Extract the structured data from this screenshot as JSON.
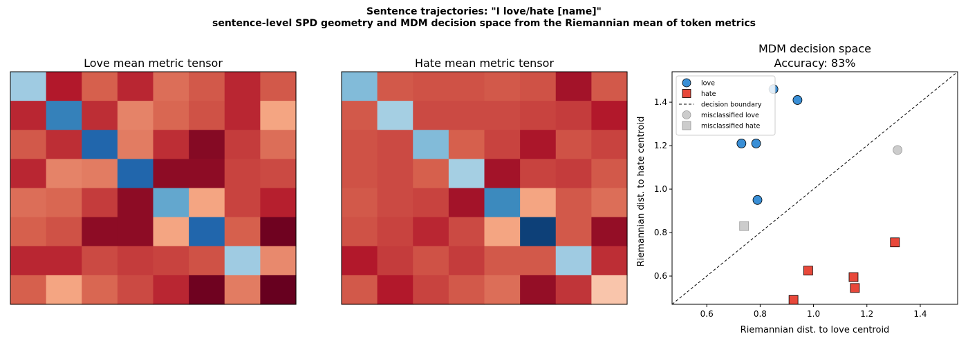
{
  "suptitle": {
    "line1": "Sentence trajectories: \"I love/hate [name]\"",
    "line2": "sentence-level SPD geometry and MDM decision space from the Riemannian mean of token metrics"
  },
  "colors": {
    "love_marker": "#3a8fd6",
    "hate_marker": "#e8483a",
    "misclassified": "#cccccc",
    "colormap": "RdBu"
  },
  "chart_data": [
    {
      "type": "heatmap",
      "title": "Love mean metric tensor",
      "colormap": "RdBu",
      "vmin": 0,
      "vmax": 1,
      "values": [
        [
          0.68,
          0.1,
          0.2,
          0.12,
          0.22,
          0.19,
          0.12,
          0.19
        ],
        [
          0.12,
          0.84,
          0.13,
          0.25,
          0.21,
          0.18,
          0.12,
          0.3
        ],
        [
          0.19,
          0.13,
          0.9,
          0.24,
          0.13,
          0.04,
          0.15,
          0.22
        ],
        [
          0.12,
          0.25,
          0.24,
          0.9,
          0.05,
          0.05,
          0.16,
          0.17
        ],
        [
          0.22,
          0.21,
          0.15,
          0.05,
          0.76,
          0.3,
          0.16,
          0.11
        ],
        [
          0.2,
          0.18,
          0.05,
          0.05,
          0.3,
          0.9,
          0.2,
          0.01
        ],
        [
          0.12,
          0.12,
          0.17,
          0.15,
          0.16,
          0.18,
          0.68,
          0.26
        ],
        [
          0.2,
          0.3,
          0.21,
          0.17,
          0.12,
          0.01,
          0.24,
          0.0
        ]
      ]
    },
    {
      "type": "heatmap",
      "title": "Hate mean metric tensor",
      "colormap": "RdBu",
      "vmin": 0,
      "vmax": 1,
      "values": [
        [
          0.72,
          0.19,
          0.18,
          0.18,
          0.19,
          0.18,
          0.08,
          0.19
        ],
        [
          0.19,
          0.67,
          0.17,
          0.17,
          0.17,
          0.16,
          0.15,
          0.1
        ],
        [
          0.18,
          0.17,
          0.72,
          0.2,
          0.16,
          0.09,
          0.18,
          0.16
        ],
        [
          0.18,
          0.17,
          0.2,
          0.67,
          0.08,
          0.16,
          0.15,
          0.19
        ],
        [
          0.19,
          0.17,
          0.16,
          0.08,
          0.82,
          0.3,
          0.19,
          0.22
        ],
        [
          0.18,
          0.16,
          0.12,
          0.17,
          0.3,
          0.97,
          0.19,
          0.06
        ],
        [
          0.1,
          0.15,
          0.18,
          0.15,
          0.19,
          0.19,
          0.68,
          0.13
        ],
        [
          0.19,
          0.1,
          0.16,
          0.19,
          0.22,
          0.06,
          0.14,
          0.36
        ]
      ]
    },
    {
      "type": "scatter",
      "title": "MDM decision space",
      "subtitle": "Accuracy: 83%",
      "xlabel": "Riemannian dist. to love centroid",
      "ylabel": "Riemannian dist. to hate centroid",
      "xlim": [
        0.47,
        1.54
      ],
      "ylim": [
        0.47,
        1.54
      ],
      "xticks": [
        "0.6",
        "0.8",
        "1.0",
        "1.2",
        "1.4"
      ],
      "yticks": [
        "0.6",
        "0.8",
        "1.0",
        "1.2",
        "1.4"
      ],
      "legend_position": "top-left",
      "series": [
        {
          "name": "love",
          "marker": "circle",
          "color": "#3a8fd6",
          "points": [
            [
              0.85,
              1.46
            ],
            [
              0.94,
              1.41
            ],
            [
              0.73,
              1.21
            ],
            [
              0.785,
              1.21
            ],
            [
              0.79,
              0.95
            ]
          ]
        },
        {
          "name": "hate",
          "marker": "square",
          "color": "#e8483a",
          "points": [
            [
              0.98,
              0.625
            ],
            [
              1.15,
              0.595
            ],
            [
              1.155,
              0.545
            ],
            [
              0.925,
              0.49
            ],
            [
              1.305,
              0.755
            ]
          ]
        },
        {
          "name": "decision boundary",
          "marker": "dashed-line",
          "color": "#000000",
          "points": [
            [
              0.47,
              0.47
            ],
            [
              1.54,
              1.54
            ]
          ]
        },
        {
          "name": "misclassified love",
          "marker": "circle",
          "color": "#cccccc",
          "points": [
            [
              1.315,
              1.18
            ]
          ]
        },
        {
          "name": "misclassified hate",
          "marker": "square",
          "color": "#cccccc",
          "points": [
            [
              0.74,
              0.83
            ]
          ]
        }
      ]
    }
  ]
}
